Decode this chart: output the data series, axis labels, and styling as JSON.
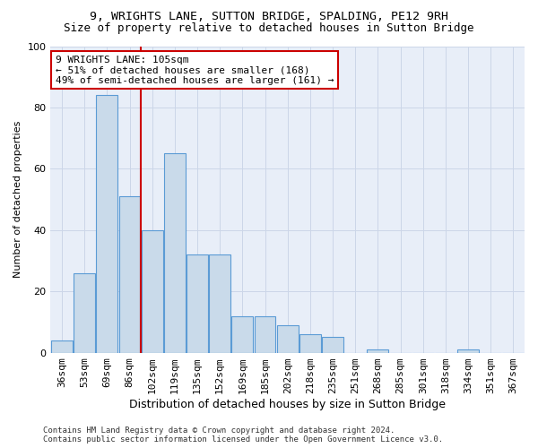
{
  "title1": "9, WRIGHTS LANE, SUTTON BRIDGE, SPALDING, PE12 9RH",
  "title2": "Size of property relative to detached houses in Sutton Bridge",
  "xlabel": "Distribution of detached houses by size in Sutton Bridge",
  "ylabel": "Number of detached properties",
  "categories": [
    "36sqm",
    "53sqm",
    "69sqm",
    "86sqm",
    "102sqm",
    "119sqm",
    "135sqm",
    "152sqm",
    "169sqm",
    "185sqm",
    "202sqm",
    "218sqm",
    "235sqm",
    "251sqm",
    "268sqm",
    "285sqm",
    "301sqm",
    "318sqm",
    "334sqm",
    "351sqm",
    "367sqm"
  ],
  "values": [
    4,
    26,
    84,
    51,
    40,
    65,
    32,
    32,
    12,
    12,
    9,
    6,
    5,
    0,
    1,
    0,
    0,
    0,
    1,
    0,
    0
  ],
  "bar_color": "#c9daea",
  "bar_edge_color": "#5b9bd5",
  "vline_index": 3.5,
  "vline_color": "#cc0000",
  "annotation_text": "9 WRIGHTS LANE: 105sqm\n← 51% of detached houses are smaller (168)\n49% of semi-detached houses are larger (161) →",
  "annotation_box_color": "#ffffff",
  "annotation_box_edge": "#cc0000",
  "grid_color": "#ccd6e8",
  "background_color": "#e8eef8",
  "footer": "Contains HM Land Registry data © Crown copyright and database right 2024.\nContains public sector information licensed under the Open Government Licence v3.0.",
  "ylim": [
    0,
    100
  ],
  "yticks": [
    0,
    20,
    40,
    60,
    80,
    100
  ],
  "title1_fontsize": 9.5,
  "title2_fontsize": 9,
  "xlabel_fontsize": 9,
  "ylabel_fontsize": 8,
  "tick_fontsize": 8,
  "ann_fontsize": 8
}
